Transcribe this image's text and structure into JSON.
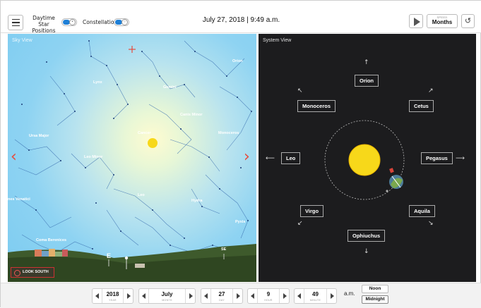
{
  "header": {
    "daytime_label": "Daytime Star\nPositions",
    "daytime_line1": "Daytime Star",
    "daytime_line2": "Positions",
    "constellations_label": "Constellations",
    "datetime": "July 27, 2018 | 9:49 a.m.",
    "speed_caption": "SPEED",
    "speed_value": "Months",
    "reset_glyph": "↺"
  },
  "sky_view": {
    "title": "Sky View",
    "constellations": [
      "Orion",
      "Lynx",
      "Gemini",
      "Canis Minor",
      "Monoceros",
      "Cancer",
      "Ursa Major",
      "Leo Minor",
      "Leo",
      "Hydra",
      "nes Venatici",
      "Pyxis",
      "Coma Berenices"
    ],
    "compass_e": "E",
    "compass_se": "SE",
    "look_button": "LOOK SOUTH"
  },
  "system_view": {
    "title": "System View",
    "labels": [
      "Orion",
      "Monoceros",
      "Cetus",
      "Leo",
      "Pegasus",
      "Virgo",
      "Aquila",
      "Ophiuchus"
    ]
  },
  "controls": {
    "year": {
      "value": "2018",
      "caption": "YEAR"
    },
    "month": {
      "value": "July",
      "caption": "MONTH"
    },
    "day": {
      "value": "27",
      "caption": "DAY"
    },
    "hour": {
      "value": "9",
      "caption": "HOUR"
    },
    "minute": {
      "value": "49",
      "caption": "MINUTE"
    },
    "ampm": "a.m.",
    "noon": "Noon",
    "midnight": "Midnight"
  },
  "colors": {
    "accent": "#1e7fd6",
    "nav_arrow": "#e64b3c",
    "sun": "#f7d81a"
  },
  "icons": [
    "menu-icon",
    "play-icon",
    "reset-icon",
    "chevron-left-icon",
    "chevron-right-icon",
    "sun-icon",
    "earth-icon",
    "eye-icon"
  ]
}
